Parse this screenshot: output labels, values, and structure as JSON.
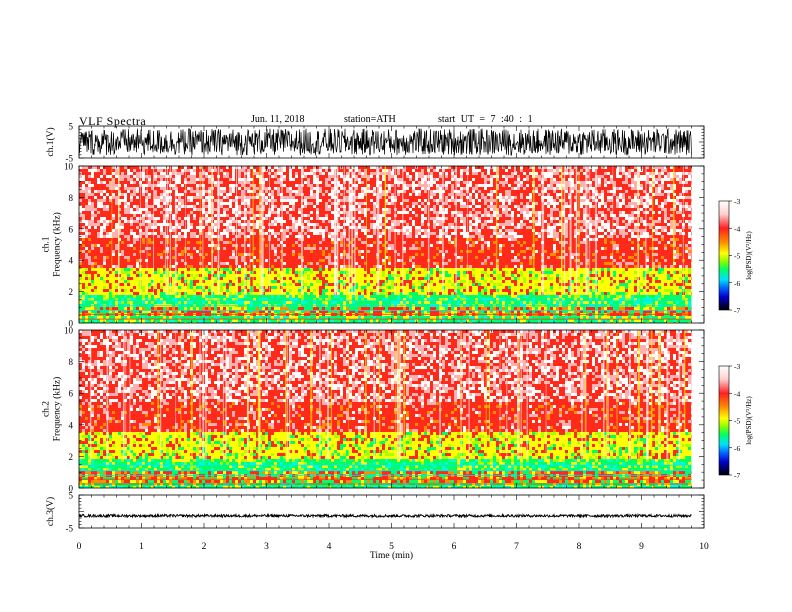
{
  "header": {
    "title": "VLF  Spectra",
    "date": "Jun. 11, 2018",
    "station": "station=ATH",
    "start": "start  UT  =    7  :40 : 1"
  },
  "colors": {
    "spectrogram_low_power": "#00ff66",
    "spectrogram_mid_power": "#ffff00",
    "spectrogram_high_power": "#ff2020",
    "spectrogram_saturated": "#ffffff"
  },
  "chart_data": [
    {
      "type": "line",
      "name": "ch1-waveform",
      "ylabel": "ch.1(V)",
      "ylim": [
        -5,
        5
      ],
      "y_ticks": [
        "5",
        "-5"
      ],
      "xlim": [
        0,
        10
      ],
      "description_values": {
        "amplitude_range_V": [
          -4.2,
          4.2
        ],
        "data_end_min": 9.8
      }
    },
    {
      "type": "heatmap",
      "name": "ch1-spectrogram",
      "ylabel_lines": [
        "ch.1",
        "Frequency  (kHz)"
      ],
      "ylim": [
        0,
        10
      ],
      "y_ticks": [
        "0",
        "2",
        "4",
        "6",
        "8",
        "10"
      ],
      "xlim": [
        0,
        10
      ],
      "data_end_min": 9.8,
      "bands": [
        {
          "f_range_kHz": [
            0.0,
            0.4
          ],
          "level": "green"
        },
        {
          "f_range_kHz": [
            0.4,
            1.0
          ],
          "level": "mixed"
        },
        {
          "f_range_kHz": [
            1.0,
            1.8
          ],
          "level": "green"
        },
        {
          "f_range_kHz": [
            1.8,
            3.5
          ],
          "level": "yellow"
        },
        {
          "f_range_kHz": [
            3.5,
            5.5
          ],
          "level": "red"
        },
        {
          "f_range_kHz": [
            5.5,
            10.0
          ],
          "level": "red-white"
        }
      ],
      "colorbar": {
        "label": "log(PSD)(V²/Hz)",
        "range": [
          -7,
          -3
        ],
        "ticks": [
          "-3",
          "-4",
          "-5",
          "-6",
          "-7"
        ]
      }
    },
    {
      "type": "heatmap",
      "name": "ch2-spectrogram",
      "ylabel_lines": [
        "ch.2",
        "Frequency  (kHz)"
      ],
      "ylim": [
        0,
        10
      ],
      "y_ticks": [
        "0",
        "2",
        "4",
        "6",
        "8",
        "10"
      ],
      "xlim": [
        0,
        10
      ],
      "data_end_min": 9.8,
      "bands": [
        {
          "f_range_kHz": [
            0.0,
            0.4
          ],
          "level": "green"
        },
        {
          "f_range_kHz": [
            0.4,
            1.8
          ],
          "level": "green"
        },
        {
          "f_range_kHz": [
            1.8,
            3.5
          ],
          "level": "yellow"
        },
        {
          "f_range_kHz": [
            3.5,
            5.5
          ],
          "level": "red"
        },
        {
          "f_range_kHz": [
            5.5,
            10.0
          ],
          "level": "red-white"
        }
      ],
      "colorbar": {
        "label": "log(PSD)(V²/Hz)",
        "range": [
          -7,
          -3
        ],
        "ticks": [
          "-3",
          "-4",
          "-5",
          "-6",
          "-7"
        ]
      }
    },
    {
      "type": "line",
      "name": "ch3-waveform",
      "ylabel": "ch.3(V)",
      "ylim": [
        -5,
        5
      ],
      "y_ticks": [
        "5",
        "-5"
      ],
      "xlim": [
        0,
        10
      ],
      "description_values": {
        "mean_V": -1.3,
        "amplitude_range_V": [
          -1.7,
          -0.9
        ],
        "data_end_min": 9.8
      }
    }
  ],
  "xaxis": {
    "label": "Time  (min)",
    "ticks": [
      "0",
      "1",
      "2",
      "3",
      "4",
      "5",
      "6",
      "7",
      "8",
      "9",
      "10"
    ]
  }
}
